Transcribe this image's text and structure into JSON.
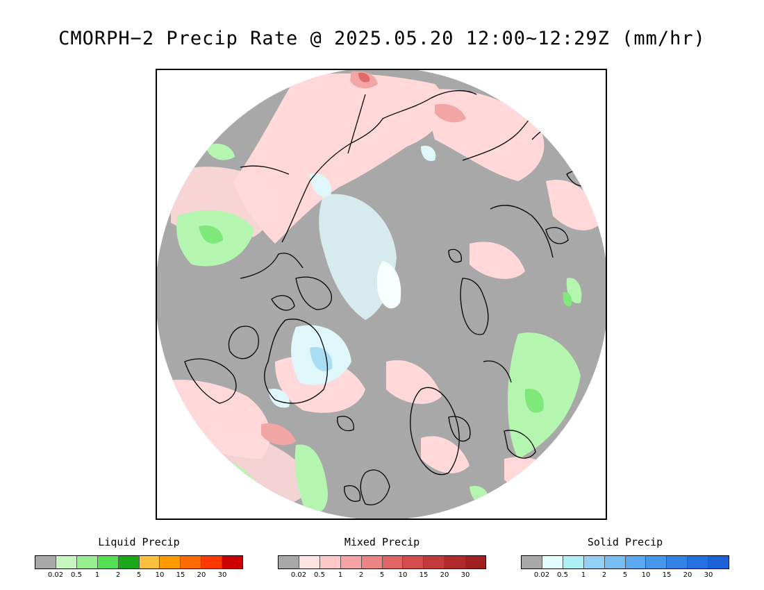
{
  "title": "CMORPH−2 Precip Rate @ 2025.05.20 12:00~12:29Z (mm/hr)",
  "map": {
    "projection": "north polar stereographic",
    "colors": {
      "background": "#a8a8a8",
      "coastline": "#000000",
      "liquid_light": "#b4f5b0",
      "liquid_mid": "#7ee87a",
      "mixed_light": "#ffd9d9",
      "mixed_mid": "#f2a5a5",
      "mixed_dark": "#e06a6a",
      "solid_light": "#dff7fa",
      "solid_mid": "#a9dcf5",
      "solid_dark": "#6db4ee"
    }
  },
  "legends": [
    {
      "title": "Liquid Precip",
      "colors": [
        "#a8a8a8",
        "#c6f7c0",
        "#96ee8e",
        "#52e052",
        "#1aa81a",
        "#ffc040",
        "#ff9a00",
        "#ff6a00",
        "#ff3800",
        "#cc0000"
      ],
      "ticks": [
        "0.02",
        "0.5",
        "1",
        "2",
        "5",
        "10",
        "15",
        "20",
        "30"
      ]
    },
    {
      "title": "Mixed Precip",
      "colors": [
        "#a8a8a8",
        "#ffe2e2",
        "#ffc8c8",
        "#f5a3a3",
        "#ec8484",
        "#e06666",
        "#d44c4c",
        "#c43a3a",
        "#b22a2a",
        "#9e2020"
      ],
      "ticks": [
        "0.02",
        "0.5",
        "1",
        "2",
        "5",
        "10",
        "15",
        "20",
        "30"
      ]
    },
    {
      "title": "Solid Precip",
      "colors": [
        "#a8a8a8",
        "#e2fdfd",
        "#aeeef5",
        "#94d0f6",
        "#78bef3",
        "#5aa8f0",
        "#4696ec",
        "#3282e6",
        "#2470e0",
        "#1a60d6"
      ],
      "ticks": [
        "0.02",
        "0.5",
        "1",
        "2",
        "5",
        "10",
        "15",
        "20",
        "30"
      ]
    }
  ]
}
